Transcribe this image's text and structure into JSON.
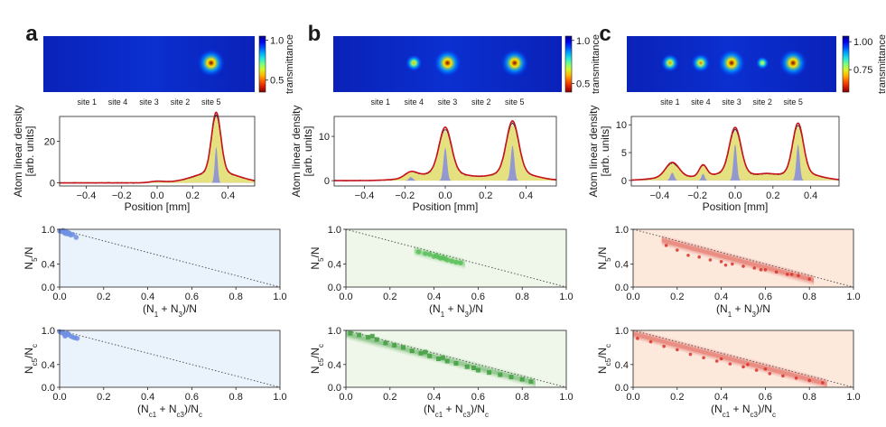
{
  "figure": {
    "panels": [
      {
        "letter": "a",
        "image": {
          "site_labels": [
            "site 1",
            "site 4",
            "site 3",
            "site 2",
            "site 5"
          ],
          "colorbar": {
            "title": "transmittance",
            "ticks": [
              "1.0",
              "0.5"
            ],
            "tick_values": [
              1.0,
              0.5
            ],
            "range": [
              0.35,
              1.05
            ]
          },
          "spots": [
            {
              "site": "site 5",
              "strength": 1.0
            }
          ]
        },
        "profile": {
          "xlabel": "Position [mm]",
          "ylabel": [
            "Atom linear density",
            "[arb. units]"
          ],
          "xlim": [
            -0.55,
            0.55
          ],
          "ylim": [
            -1.5,
            32
          ],
          "xticks": [
            -0.4,
            -0.2,
            0.0,
            0.2,
            0.4
          ],
          "xtick_labels": [
            "−0.4",
            "−0.2",
            "0.0",
            "0.2",
            "0.4"
          ],
          "yticks": [
            0,
            20
          ],
          "ytick_labels": [
            "0",
            "20"
          ],
          "peaks": [
            {
              "x": 0.333,
              "height": 28.5,
              "width": 0.026,
              "tail_height": 5.5,
              "tail_width": 0.12
            },
            {
              "x": 0.0,
              "height": 0.7,
              "width": 0.04,
              "tail_height": 0,
              "tail_width": 0.1
            }
          ],
          "narrow_peaks": [
            {
              "x": 0.333,
              "height": 17.5,
              "width": 0.008
            }
          ]
        },
        "scatter_top": {
          "xlabel": "(N1 + N3)/N",
          "ylabel": "N5/N",
          "xlim": [
            0,
            1
          ],
          "ylim": [
            0,
            1
          ],
          "ticks": [
            0.0,
            0.2,
            0.4,
            0.6,
            0.8,
            1.0
          ],
          "tick_labels": [
            "0.0",
            "0.2",
            "0.4",
            "0.6",
            "0.8",
            "1.0"
          ],
          "marker_color": "#6f8fe3",
          "background": "#eaf2fb",
          "points": [
            [
              0.0,
              0.97
            ],
            [
              0.01,
              0.96
            ],
            [
              0.02,
              0.95
            ],
            [
              0.025,
              0.93
            ],
            [
              0.035,
              0.92
            ],
            [
              0.04,
              0.94
            ],
            [
              0.05,
              0.9
            ],
            [
              0.06,
              0.91
            ],
            [
              0.075,
              0.86
            ],
            [
              0.015,
              0.98
            ],
            [
              0.03,
              0.96
            ],
            [
              0.045,
              0.93
            ]
          ]
        },
        "scatter_bottom": {
          "xlabel": "(Nc1 + Nc3)/Nc",
          "ylabel": "Nc5/Nc",
          "xlim": [
            0,
            1
          ],
          "ylim": [
            0,
            1
          ],
          "ticks": [
            0.0,
            0.2,
            0.4,
            0.6,
            0.8,
            1.0
          ],
          "tick_labels": [
            "0.0",
            "0.2",
            "0.4",
            "0.6",
            "0.8",
            "1.0"
          ],
          "marker_color": "#6f8fe3",
          "background": "#eaf2fb",
          "points": [
            [
              0.0,
              0.98
            ],
            [
              0.01,
              0.96
            ],
            [
              0.02,
              0.94
            ],
            [
              0.03,
              0.92
            ],
            [
              0.04,
              0.93
            ],
            [
              0.05,
              0.9
            ],
            [
              0.06,
              0.88
            ],
            [
              0.07,
              0.87
            ],
            [
              0.08,
              0.86
            ],
            [
              0.015,
              0.97
            ],
            [
              0.035,
              0.95
            ],
            [
              0.025,
              0.9
            ]
          ]
        }
      },
      {
        "letter": "b",
        "image": {
          "site_labels": [
            "site 1",
            "site 4",
            "site 3",
            "site 2",
            "site 5"
          ],
          "colorbar": {
            "title": "transmittance",
            "ticks": [
              "1.0",
              "0.5"
            ],
            "tick_values": [
              1.0,
              0.5
            ],
            "range": [
              0.4,
              1.05
            ]
          },
          "spots": [
            {
              "site": "site 4",
              "strength": 0.35
            },
            {
              "site": "site 3",
              "strength": 1.0
            },
            {
              "site": "site 5",
              "strength": 1.0
            }
          ]
        },
        "profile": {
          "xlabel": "Position [mm]",
          "ylabel": [
            "Atom linear density",
            "[arb. units]"
          ],
          "xlim": [
            -0.55,
            0.55
          ],
          "ylim": [
            -1.2,
            14.5
          ],
          "xticks": [
            -0.4,
            -0.2,
            0.0,
            0.2,
            0.4
          ],
          "xtick_labels": [
            "−0.4",
            "−0.2",
            "0.0",
            "0.2",
            "0.4"
          ],
          "yticks": [
            0,
            10
          ],
          "ytick_labels": [
            "0",
            "10"
          ],
          "peaks": [
            {
              "x": 0.0,
              "height": 10.0,
              "width": 0.03,
              "tail_height": 2.0,
              "tail_width": 0.1
            },
            {
              "x": 0.333,
              "height": 11.5,
              "width": 0.03,
              "tail_height": 2.0,
              "tail_width": 0.1
            },
            {
              "x": -0.17,
              "height": 1.3,
              "width": 0.03,
              "tail_height": 0.3,
              "tail_width": 0.1
            }
          ],
          "narrow_peaks": [
            {
              "x": 0.0,
              "height": 7.5,
              "width": 0.009
            },
            {
              "x": 0.333,
              "height": 8.0,
              "width": 0.009
            },
            {
              "x": -0.17,
              "height": 0.8,
              "width": 0.01
            }
          ]
        },
        "scatter_top": {
          "xlabel": "(N1 + N3)/N",
          "ylabel": "N5/N",
          "xlim": [
            0,
            1
          ],
          "ylim": [
            0,
            1
          ],
          "ticks": [
            0.0,
            0.2,
            0.4,
            0.6,
            0.8,
            1.0
          ],
          "tick_labels": [
            "0.0",
            "0.2",
            "0.4",
            "0.6",
            "0.8",
            "1.0"
          ],
          "marker_color": "#5bbf5b",
          "background": "#eef7e9",
          "points": [
            [
              0.33,
              0.61
            ],
            [
              0.36,
              0.58
            ],
            [
              0.38,
              0.57
            ],
            [
              0.4,
              0.53
            ],
            [
              0.42,
              0.52
            ],
            [
              0.43,
              0.5
            ],
            [
              0.45,
              0.49
            ],
            [
              0.46,
              0.47
            ],
            [
              0.48,
              0.45
            ],
            [
              0.5,
              0.43
            ],
            [
              0.52,
              0.42
            ],
            [
              0.41,
              0.55
            ],
            [
              0.44,
              0.51
            ]
          ]
        },
        "scatter_bottom": {
          "xlabel": "(Nc1 + Nc3)/Nc",
          "ylabel": "Nc5/Nc",
          "xlim": [
            0,
            1
          ],
          "ylim": [
            0,
            1
          ],
          "ticks": [
            0.0,
            0.2,
            0.4,
            0.6,
            0.8,
            1.0
          ],
          "tick_labels": [
            "0.0",
            "0.2",
            "0.4",
            "0.6",
            "0.8",
            "1.0"
          ],
          "marker_color": "#3f9f3f",
          "background": "#eef7e9",
          "points": [
            [
              0.02,
              0.95
            ],
            [
              0.06,
              0.92
            ],
            [
              0.1,
              0.88
            ],
            [
              0.14,
              0.84
            ],
            [
              0.18,
              0.78
            ],
            [
              0.22,
              0.74
            ],
            [
              0.26,
              0.7
            ],
            [
              0.3,
              0.64
            ],
            [
              0.34,
              0.6
            ],
            [
              0.38,
              0.55
            ],
            [
              0.42,
              0.5
            ],
            [
              0.46,
              0.46
            ],
            [
              0.5,
              0.42
            ],
            [
              0.55,
              0.36
            ],
            [
              0.6,
              0.3
            ],
            [
              0.65,
              0.26
            ],
            [
              0.7,
              0.22
            ],
            [
              0.75,
              0.18
            ],
            [
              0.8,
              0.14
            ],
            [
              0.84,
              0.1
            ],
            [
              0.12,
              0.9
            ],
            [
              0.36,
              0.62
            ],
            [
              0.44,
              0.52
            ],
            [
              0.58,
              0.34
            ]
          ]
        }
      },
      {
        "letter": "c",
        "image": {
          "site_labels": [
            "site 1",
            "site 4",
            "site 3",
            "site 2",
            "site 5"
          ],
          "colorbar": {
            "title": "transmittance",
            "ticks": [
              "1.00",
              "0.75"
            ],
            "tick_values": [
              1.0,
              0.75
            ],
            "range": [
              0.55,
              1.05
            ]
          },
          "spots": [
            {
              "site": "site 1",
              "strength": 0.45
            },
            {
              "site": "site 4",
              "strength": 0.5
            },
            {
              "site": "site 3",
              "strength": 1.0
            },
            {
              "site": "site 2",
              "strength": 0.15
            },
            {
              "site": "site 5",
              "strength": 1.0
            }
          ]
        },
        "profile": {
          "xlabel": "Position [mm]",
          "ylabel": [
            "Atom linear density",
            "[arb. units]"
          ],
          "xlim": [
            -0.55,
            0.55
          ],
          "ylim": [
            -1.0,
            11.5
          ],
          "xticks": [
            -0.4,
            -0.2,
            0.0,
            0.2,
            0.4
          ],
          "xtick_labels": [
            "−0.4",
            "−0.2",
            "0.0",
            "0.2",
            "0.4"
          ],
          "yticks": [
            0,
            5,
            10
          ],
          "ytick_labels": [
            "0",
            "5",
            "10"
          ],
          "peaks": [
            {
              "x": -0.333,
              "height": 2.6,
              "width": 0.035,
              "tail_height": 0.6,
              "tail_width": 0.1
            },
            {
              "x": -0.17,
              "height": 2.0,
              "width": 0.02,
              "tail_height": 0.3,
              "tail_width": 0.08
            },
            {
              "x": 0.0,
              "height": 8.0,
              "width": 0.03,
              "tail_height": 1.5,
              "tail_width": 0.1
            },
            {
              "x": 0.167,
              "height": 0.5,
              "width": 0.04,
              "tail_height": 0,
              "tail_width": 0.1
            },
            {
              "x": 0.333,
              "height": 8.8,
              "width": 0.028,
              "tail_height": 1.5,
              "tail_width": 0.1
            }
          ],
          "narrow_peaks": [
            {
              "x": -0.333,
              "height": 1.4,
              "width": 0.01
            },
            {
              "x": -0.17,
              "height": 1.2,
              "width": 0.008
            },
            {
              "x": 0.0,
              "height": 6.5,
              "width": 0.009
            },
            {
              "x": 0.333,
              "height": 6.5,
              "width": 0.009
            }
          ]
        },
        "scatter_top": {
          "xlabel": "(N1 + N3)/N",
          "ylabel": "N5/N",
          "xlim": [
            0,
            1
          ],
          "ylim": [
            0,
            1
          ],
          "ticks": [
            0.0,
            0.2,
            0.4,
            0.6,
            0.8,
            1.0
          ],
          "tick_labels": [
            "0.0",
            "0.2",
            "0.4",
            "0.6",
            "0.8",
            "1.0"
          ],
          "marker_color": "#d8322a",
          "background": "#fde8dc",
          "points": [
            [
              0.15,
              0.72
            ],
            [
              0.2,
              0.64
            ],
            [
              0.25,
              0.55
            ],
            [
              0.3,
              0.52
            ],
            [
              0.35,
              0.47
            ],
            [
              0.4,
              0.44
            ],
            [
              0.45,
              0.4
            ],
            [
              0.5,
              0.36
            ],
            [
              0.55,
              0.33
            ],
            [
              0.6,
              0.3
            ],
            [
              0.65,
              0.26
            ],
            [
              0.7,
              0.22
            ],
            [
              0.75,
              0.2
            ],
            [
              0.8,
              0.14
            ],
            [
              0.42,
              0.38
            ],
            [
              0.58,
              0.3
            ],
            [
              0.72,
              0.22
            ]
          ]
        },
        "scatter_bottom": {
          "xlabel": "(Nc1 + Nc3)/Nc",
          "ylabel": "Nc5/Nc",
          "xlim": [
            0,
            1
          ],
          "ylim": [
            0,
            1
          ],
          "ticks": [
            0.0,
            0.2,
            0.4,
            0.6,
            0.8,
            1.0
          ],
          "tick_labels": [
            "0.0",
            "0.2",
            "0.4",
            "0.6",
            "0.8",
            "1.0"
          ],
          "marker_color": "#d8322a",
          "background": "#fde8dc",
          "points": [
            [
              0.02,
              0.86
            ],
            [
              0.08,
              0.8
            ],
            [
              0.14,
              0.72
            ],
            [
              0.2,
              0.66
            ],
            [
              0.26,
              0.58
            ],
            [
              0.32,
              0.52
            ],
            [
              0.38,
              0.46
            ],
            [
              0.44,
              0.41
            ],
            [
              0.5,
              0.36
            ],
            [
              0.56,
              0.3
            ],
            [
              0.62,
              0.24
            ],
            [
              0.68,
              0.2
            ],
            [
              0.74,
              0.16
            ],
            [
              0.8,
              0.12
            ],
            [
              0.86,
              0.08
            ],
            [
              0.4,
              0.5
            ],
            [
              0.6,
              0.32
            ],
            [
              0.52,
              0.4
            ]
          ]
        }
      }
    ]
  }
}
